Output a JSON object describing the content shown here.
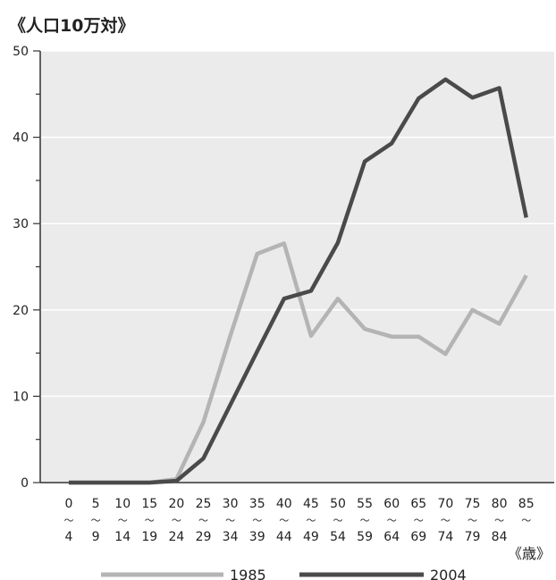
{
  "chart_data": {
    "type": "line",
    "ylabel": "《人口10万対》",
    "xunit": "《歳》",
    "ylim": [
      0,
      50
    ],
    "yticks": [
      "0",
      "10",
      "20",
      "30",
      "40",
      "50"
    ],
    "categories": [
      {
        "top": "0",
        "sep": "〜",
        "bottom": "4"
      },
      {
        "top": "5",
        "sep": "〜",
        "bottom": "9"
      },
      {
        "top": "10",
        "sep": "〜",
        "bottom": "14"
      },
      {
        "top": "15",
        "sep": "〜",
        "bottom": "19"
      },
      {
        "top": "20",
        "sep": "〜",
        "bottom": "24"
      },
      {
        "top": "25",
        "sep": "〜",
        "bottom": "29"
      },
      {
        "top": "30",
        "sep": "〜",
        "bottom": "34"
      },
      {
        "top": "35",
        "sep": "〜",
        "bottom": "39"
      },
      {
        "top": "40",
        "sep": "〜",
        "bottom": "44"
      },
      {
        "top": "45",
        "sep": "〜",
        "bottom": "49"
      },
      {
        "top": "50",
        "sep": "〜",
        "bottom": "54"
      },
      {
        "top": "55",
        "sep": "〜",
        "bottom": "59"
      },
      {
        "top": "60",
        "sep": "〜",
        "bottom": "64"
      },
      {
        "top": "65",
        "sep": "〜",
        "bottom": "69"
      },
      {
        "top": "70",
        "sep": "〜",
        "bottom": "74"
      },
      {
        "top": "75",
        "sep": "〜",
        "bottom": "79"
      },
      {
        "top": "80",
        "sep": "〜",
        "bottom": "84"
      },
      {
        "top": "85",
        "sep": "〜",
        "bottom": ""
      }
    ],
    "series": [
      {
        "name": "1985",
        "color": "#b4b4b4",
        "values": [
          0,
          0,
          0,
          0,
          0.4,
          7,
          17,
          26.5,
          27.7,
          17,
          21.3,
          17.8,
          16.9,
          16.9,
          14.9,
          20,
          18.4,
          24
        ]
      },
      {
        "name": "2004",
        "color": "#4a4a4a",
        "values": [
          0,
          0,
          0,
          0,
          0.2,
          2.8,
          9,
          15.2,
          21.3,
          22.2,
          27.8,
          37.2,
          39.3,
          44.5,
          46.7,
          44.6,
          45.7,
          30.7
        ]
      }
    ],
    "grid": true,
    "legend": "bottom"
  }
}
